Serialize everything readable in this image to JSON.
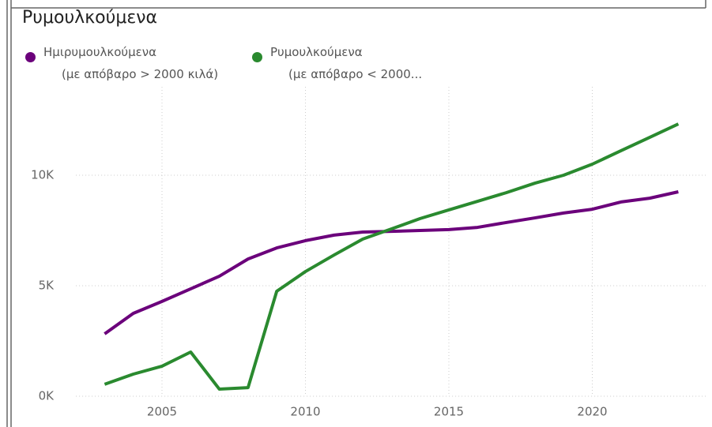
{
  "chart_data": {
    "type": "line",
    "title": "Ρυμουλκούμενα",
    "x": [
      2003,
      2004,
      2005,
      2006,
      2007,
      2008,
      2009,
      2010,
      2011,
      2012,
      2013,
      2014,
      2015,
      2016,
      2017,
      2018,
      2019,
      2020,
      2021,
      2022,
      2023
    ],
    "series": [
      {
        "name": "Ημιρυμουλκούμενα\n(με απόβαρο > 2000 κιλά)",
        "color": "#6b007b",
        "values": [
          2820,
          3750,
          4290,
          4860,
          5430,
          6210,
          6710,
          7040,
          7290,
          7430,
          7460,
          7500,
          7540,
          7640,
          7860,
          8070,
          8290,
          8460,
          8790,
          8960,
          9250
        ]
      },
      {
        "name": "Ρυμουλκούμενα\n(με απόβαρο < 2000...",
        "color": "#2a8a2f",
        "values": [
          540,
          1000,
          1360,
          2000,
          320,
          390,
          4750,
          5640,
          6390,
          7110,
          7570,
          8040,
          8430,
          8820,
          9210,
          9640,
          10000,
          10500,
          11110,
          11710,
          12320
        ]
      }
    ],
    "xlim": [
      2002,
      2024
    ],
    "xticks": [
      2005,
      2010,
      2015,
      2020
    ],
    "ylim": [
      0,
      14000
    ],
    "yticks": [
      {
        "value": 0,
        "label": "0K"
      },
      {
        "value": 5000,
        "label": "5K"
      },
      {
        "value": 10000,
        "label": "10K"
      }
    ],
    "grid": true
  }
}
